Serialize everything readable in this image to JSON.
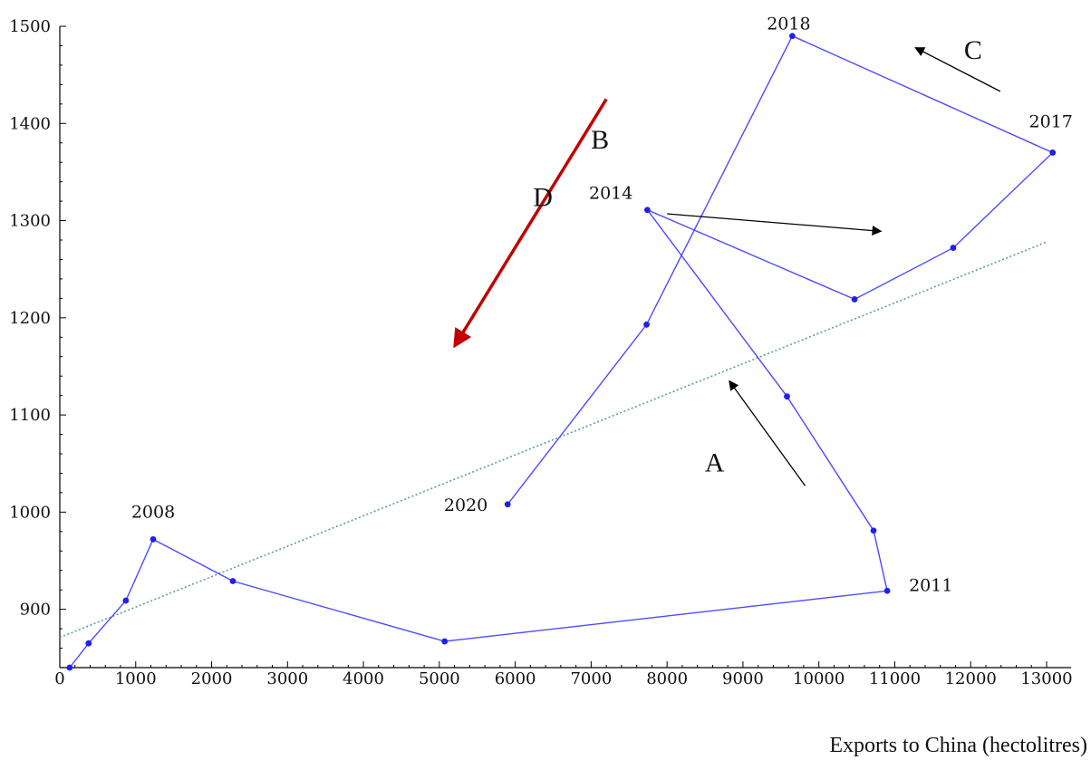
{
  "chart_data": {
    "type": "line",
    "title": "",
    "xlabel": "Exports to China (hectolitres)",
    "ylabel": "",
    "xlim": [
      0,
      13000
    ],
    "ylim": [
      840,
      1500
    ],
    "xticks": [
      0,
      1000,
      2000,
      3000,
      4000,
      5000,
      6000,
      7000,
      8000,
      9000,
      10000,
      11000,
      12000,
      13000
    ],
    "yticks": [
      900,
      1000,
      1100,
      1200,
      1300,
      1400,
      1500
    ],
    "grid": false,
    "series": [
      {
        "points": [
          {
            "x": 130,
            "y": 840
          },
          {
            "x": 380,
            "y": 865
          },
          {
            "x": 870,
            "y": 909
          },
          {
            "x": 1230,
            "y": 972,
            "label": "2008"
          },
          {
            "x": 2280,
            "y": 929
          },
          {
            "x": 5070,
            "y": 867
          },
          {
            "x": 10900,
            "y": 919,
            "label": "2011"
          },
          {
            "x": 10720,
            "y": 981
          },
          {
            "x": 9580,
            "y": 1119
          },
          {
            "x": 7740,
            "y": 1311,
            "label": "2014"
          },
          {
            "x": 10470,
            "y": 1219
          },
          {
            "x": 11770,
            "y": 1272
          },
          {
            "x": 13080,
            "y": 1370,
            "label": "2017"
          },
          {
            "x": 9650,
            "y": 1490,
            "label": "2018"
          },
          {
            "x": 7730,
            "y": 1193
          },
          {
            "x": 5900,
            "y": 1008,
            "label": "2020"
          }
        ],
        "color": "#4b4bff"
      }
    ],
    "trendline": {
      "x": [
        0,
        13000
      ],
      "y": [
        871,
        1278
      ],
      "color": "#5a9e9a",
      "style": "dotted"
    },
    "annotations": [
      {
        "text": "A",
        "arrow": {
          "from": [
            9820,
            1027
          ],
          "to": [
            8820,
            1135
          ]
        },
        "arrow_color": "#000000"
      },
      {
        "text": "B",
        "arrow": {
          "from": [
            8000,
            1307
          ],
          "to": [
            10820,
            1289
          ]
        },
        "arrow_color": "#000000"
      },
      {
        "text": "C",
        "arrow": {
          "from": [
            12390,
            1433
          ],
          "to": [
            11270,
            1478
          ]
        },
        "arrow_color": "#000000"
      },
      {
        "text": "D",
        "arrow": {
          "from": [
            7200,
            1425
          ],
          "to": [
            5210,
            1172
          ]
        },
        "arrow_color": "#c00000"
      }
    ]
  }
}
